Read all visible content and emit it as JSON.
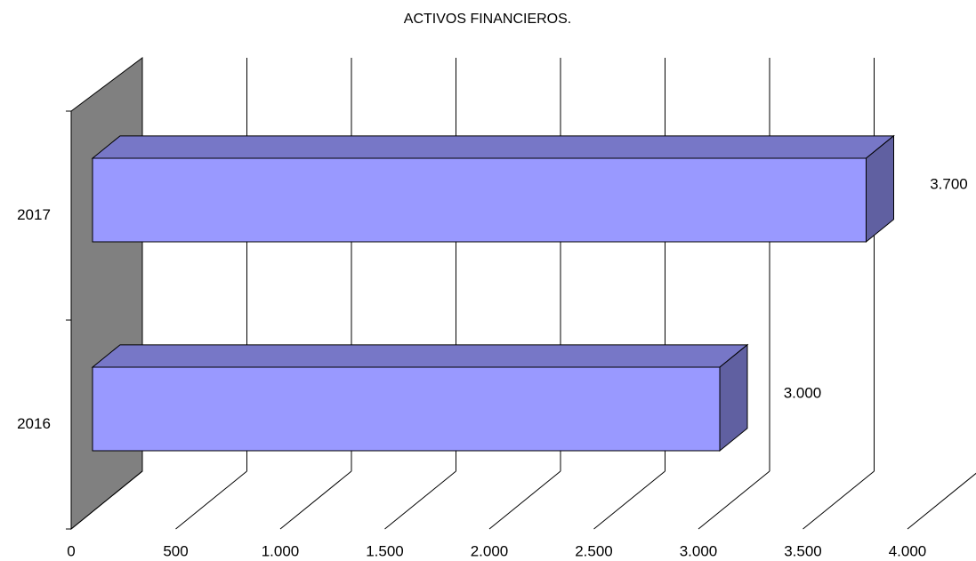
{
  "chart_data": {
    "type": "bar3d",
    "orientation": "horizontal",
    "title": "ACTIVOS FINANCIEROS.",
    "categories": [
      "2016",
      "2017"
    ],
    "values": [
      3000,
      3700
    ],
    "value_labels": [
      "3.000",
      "3.700"
    ],
    "color": "#9999ff",
    "xlim": [
      0,
      4000
    ],
    "xticks": [
      0,
      500,
      {
        "value": 1000,
        "label": "1.000"
      },
      {
        "value": 1500,
        "label": "1.500"
      },
      {
        "value": 2000,
        "label": "2.000"
      },
      {
        "value": 2500,
        "label": "2.500"
      },
      {
        "value": 3000,
        "label": "3.000"
      },
      {
        "value": 3500,
        "label": "3.500"
      },
      {
        "value": 4000,
        "label": "4.000"
      }
    ],
    "grid": true
  }
}
